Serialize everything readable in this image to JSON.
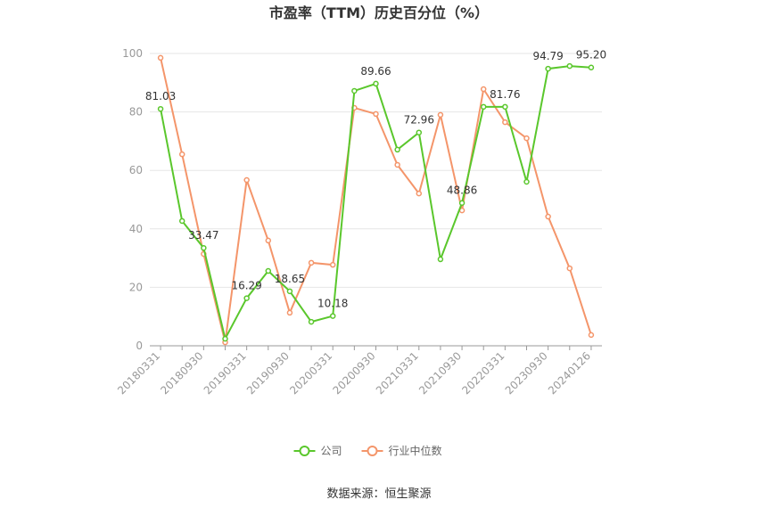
{
  "chart_data": {
    "type": "line",
    "title": "市盈率（TTM）历史百分位（%）",
    "categories": [
      "20180331",
      null,
      "20180930",
      null,
      "20190331",
      null,
      "20190930",
      null,
      "20200331",
      null,
      "20200930",
      null,
      "20210331",
      null,
      "20210930",
      null,
      "20220331",
      null,
      "20230930",
      null,
      "20240126"
    ],
    "series": [
      {
        "name": "公司",
        "color": "#5ac72c",
        "values": [
          81.03,
          42.7,
          33.47,
          2.4,
          16.29,
          25.6,
          18.65,
          8.2,
          10.18,
          87.2,
          89.66,
          67.1,
          72.96,
          29.6,
          48.86,
          81.76,
          81.76,
          56.1,
          94.79,
          95.7,
          95.2
        ],
        "value_labels": [
          "81.03",
          null,
          "33.47",
          null,
          "16.29",
          null,
          "18.65",
          null,
          "10.18",
          null,
          "89.66",
          null,
          "72.96",
          null,
          "48.86",
          null,
          "81.76",
          null,
          "94.79",
          null,
          "95.20"
        ]
      },
      {
        "name": "行业中位数",
        "color": "#f4956a",
        "values": [
          98.5,
          65.5,
          31.4,
          1.2,
          56.7,
          36,
          11.3,
          28.4,
          27.7,
          81.4,
          79.3,
          61.9,
          52.1,
          79,
          46.3,
          87.8,
          76.5,
          71,
          44.2,
          26.5,
          3.7
        ]
      }
    ],
    "ylim": [
      0,
      100
    ],
    "yticks": [
      0,
      20,
      40,
      60,
      80,
      100
    ],
    "grid": true,
    "legend": "bottom",
    "source": "数据来源：恒生聚源"
  }
}
